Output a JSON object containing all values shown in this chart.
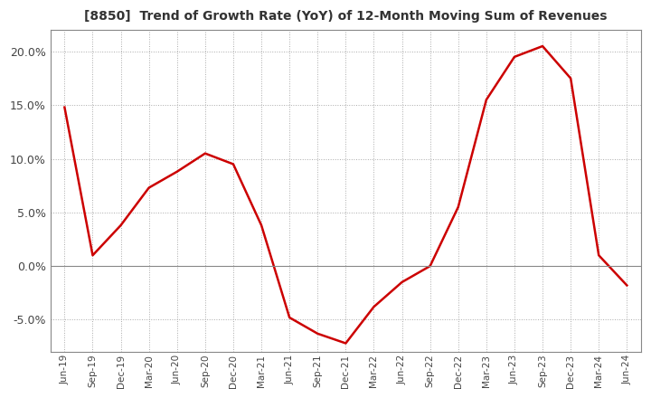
{
  "title": "[8850]  Trend of Growth Rate (YoY) of 12-Month Moving Sum of Revenues",
  "line_color": "#cc0000",
  "background_color": "#ffffff",
  "grid_color": "#aaaaaa",
  "ylim": [
    -0.08,
    0.22
  ],
  "yticks": [
    -0.05,
    0.0,
    0.05,
    0.1,
    0.15,
    0.2
  ],
  "x_labels": [
    "Jun-19",
    "Sep-19",
    "Dec-19",
    "Mar-20",
    "Jun-20",
    "Sep-20",
    "Dec-20",
    "Mar-21",
    "Jun-21",
    "Sep-21",
    "Dec-21",
    "Mar-22",
    "Jun-22",
    "Sep-22",
    "Dec-22",
    "Mar-23",
    "Jun-23",
    "Sep-23",
    "Dec-23",
    "Mar-24",
    "Jun-24"
  ],
  "y_values": [
    0.148,
    0.01,
    0.038,
    0.073,
    0.088,
    0.105,
    0.095,
    0.038,
    -0.048,
    -0.063,
    -0.072,
    -0.038,
    -0.015,
    0.0,
    0.055,
    0.155,
    0.195,
    0.205,
    0.175,
    0.01,
    -0.018
  ]
}
